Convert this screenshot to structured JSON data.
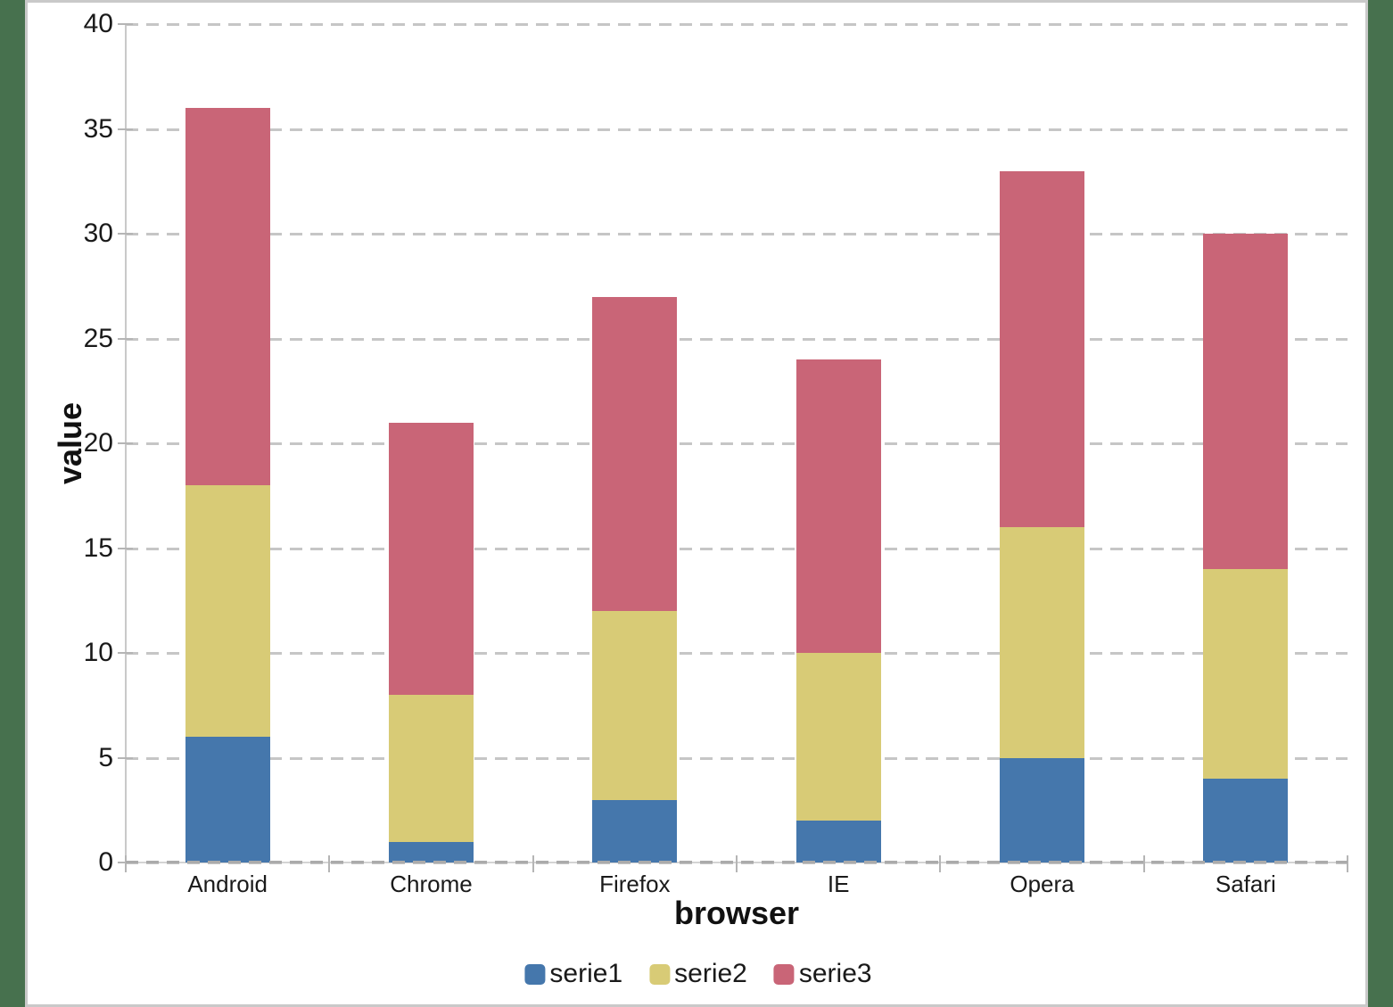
{
  "page": {
    "background_color": "#47714E",
    "panel_background": "#FFFFFF",
    "panel_border_color": "#C9C9C9"
  },
  "chart_data": {
    "type": "bar",
    "stacked": true,
    "title": "",
    "xlabel": "browser",
    "ylabel": "value",
    "categories": [
      "Android",
      "Chrome",
      "Firefox",
      "IE",
      "Opera",
      "Safari"
    ],
    "series": [
      {
        "name": "serie1",
        "color": "#4577AC",
        "values": [
          6,
          1,
          3,
          2,
          5,
          4
        ]
      },
      {
        "name": "serie2",
        "color": "#D8CB76",
        "values": [
          12,
          7,
          9,
          8,
          11,
          10
        ]
      },
      {
        "name": "serie3",
        "color": "#C96577",
        "values": [
          18,
          13,
          15,
          14,
          17,
          16
        ]
      }
    ],
    "stack_totals": [
      36,
      21,
      27,
      24,
      33,
      30
    ],
    "ylim": [
      0,
      40
    ],
    "yticks": [
      0,
      5,
      10,
      15,
      20,
      25,
      30,
      35,
      40
    ],
    "grid": "horizontal-dashed",
    "legend_position": "bottom",
    "gridline_color": "#C6C6C6",
    "axis_color": "#C9C9C9",
    "text_color": "#1A1A1A"
  }
}
